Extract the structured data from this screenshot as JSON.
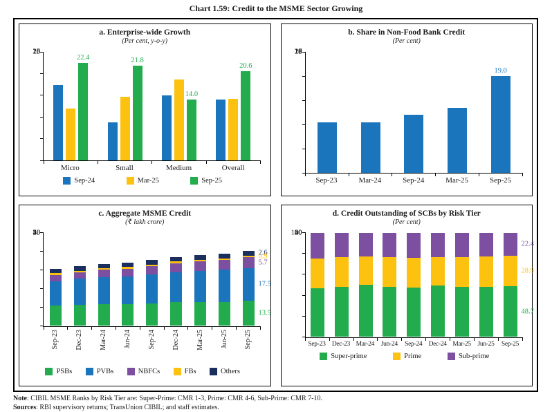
{
  "figure": {
    "title": "Chart 1.59: Credit to the MSME Sector Growing",
    "note_label": "Note",
    "note_text": ": CIBIL MSME Ranks by Risk Tier are: Super-Prime: CMR 1-3, Prime: CMR 4-6, Sub-Prime: CMR 7-10.",
    "sources_label": "Sources",
    "sources_text": ": RBI supervisory returns; TransUnion CIBIL; and staff estimates."
  },
  "colors": {
    "blue": "#1b75bc",
    "yellow": "#fdc110",
    "green": "#22ac4e",
    "purple": "#7d4fa0",
    "navy": "#1b2f5e"
  },
  "chart_data": [
    {
      "id": "a",
      "type": "bar",
      "title": "a. Enterprise-wide Growth",
      "subtitle": "(Per cent, y-o-y)",
      "categories": [
        "Micro",
        "Small",
        "Medium",
        "Overall"
      ],
      "series": [
        {
          "name": "Sep-24",
          "color": "#1b75bc",
          "values": [
            17.3,
            8.7,
            15.0,
            14.0
          ]
        },
        {
          "name": "Mar-25",
          "color": "#fdc110",
          "values": [
            12.0,
            14.6,
            18.7,
            14.1
          ]
        },
        {
          "name": "Sep-25",
          "color": "#22ac4e",
          "values": [
            22.4,
            21.8,
            14.0,
            20.6
          ],
          "labels": [
            "22.4",
            "21.8",
            "14.0",
            "20.6"
          ]
        }
      ],
      "ylim": [
        0,
        25
      ],
      "yticks": [
        0,
        5,
        10,
        15,
        20,
        25
      ],
      "legend": true,
      "rotate_x": false,
      "grid": false,
      "legend_position": "bottom"
    },
    {
      "id": "b",
      "type": "bar",
      "title": "b. Share in Non-Food Bank Credit",
      "subtitle": "(Per cent)",
      "categories": [
        "Sep-23",
        "Mar-24",
        "Sep-24",
        "Mar-25",
        "Sep-25"
      ],
      "series": [
        {
          "name": "MSME share",
          "color": "#1b75bc",
          "values": [
            17.1,
            17.1,
            17.4,
            17.7,
            19.0
          ],
          "labels": [
            null,
            null,
            null,
            null,
            "19.0"
          ]
        }
      ],
      "ylim": [
        15,
        20
      ],
      "yticks": [
        15,
        16,
        17,
        18,
        19,
        20
      ],
      "legend": false,
      "rotate_x": false,
      "grid": false
    },
    {
      "id": "c",
      "type": "stacked",
      "title": "c. Aggregate MSME Credit",
      "subtitle": "(₹ lakh crore)",
      "categories": [
        "Sep-23",
        "Dec-23",
        "Mar-24",
        "Jun-24",
        "Sep-24",
        "Dec-24",
        "Mar-25",
        "Jun-25",
        "Sep-25"
      ],
      "series": [
        {
          "name": "PSBs",
          "color": "#22ac4e",
          "values": [
            11.0,
            11.2,
            11.5,
            11.7,
            12.1,
            12.6,
            12.8,
            12.9,
            13.5
          ],
          "side_label": "13.5"
        },
        {
          "name": "PVBs",
          "color": "#1b75bc",
          "values": [
            13.0,
            14.0,
            14.7,
            14.9,
            15.4,
            16.2,
            16.7,
            17.1,
            17.5
          ],
          "side_label": "17.5"
        },
        {
          "name": "NBFCs",
          "color": "#7d4fa0",
          "values": [
            3.3,
            3.4,
            4.0,
            4.1,
            4.4,
            4.8,
            5.1,
            5.3,
            5.7
          ],
          "side_label": "5.7"
        },
        {
          "name": "FBs",
          "color": "#fdc110",
          "values": [
            0.9,
            0.9,
            0.8,
            0.8,
            0.9,
            0.9,
            0.9,
            0.9,
            0.9
          ],
          "side_label": "0.9"
        },
        {
          "name": "Others",
          "color": "#1b2f5e",
          "values": [
            2.4,
            2.4,
            2.3,
            2.5,
            2.6,
            2.5,
            2.5,
            2.5,
            2.6
          ],
          "side_label": "2.6"
        }
      ],
      "ylim": [
        0,
        50
      ],
      "yticks": [
        0,
        10,
        20,
        30,
        40,
        50
      ],
      "legend": true,
      "rotate_x": true,
      "grid": false,
      "legend_position": "bottom"
    },
    {
      "id": "d",
      "type": "stacked",
      "title": "d. Credit Outstanding of SCBs by Risk Tier",
      "subtitle": "(Per cent)",
      "categories": [
        "Sep-23",
        "Dec-23",
        "Mar-24",
        "Jun-24",
        "Sep-24",
        "Dec-24",
        "Mar-25",
        "Jun-25",
        "Sep-25"
      ],
      "series": [
        {
          "name": "Super-prime",
          "color": "#22ac4e",
          "values": [
            46.5,
            48.0,
            50.0,
            48.0,
            47.5,
            49.3,
            48.3,
            48.2,
            48.7
          ],
          "side_label": "48.7"
        },
        {
          "name": "Prime",
          "color": "#fdc110",
          "values": [
            28.7,
            28.8,
            27.3,
            28.2,
            28.3,
            27.5,
            28.5,
            28.8,
            28.9
          ],
          "side_label": "28.9"
        },
        {
          "name": "Sub-prime",
          "color": "#7d4fa0",
          "values": [
            24.8,
            23.2,
            22.7,
            23.8,
            24.2,
            23.2,
            23.2,
            23.0,
            22.4
          ],
          "side_label": "22.4"
        }
      ],
      "ylim": [
        0,
        100
      ],
      "yticks": [
        0,
        20,
        40,
        60,
        80,
        100
      ],
      "legend": true,
      "rotate_x": false,
      "grid": false,
      "legend_position": "bottom"
    }
  ]
}
